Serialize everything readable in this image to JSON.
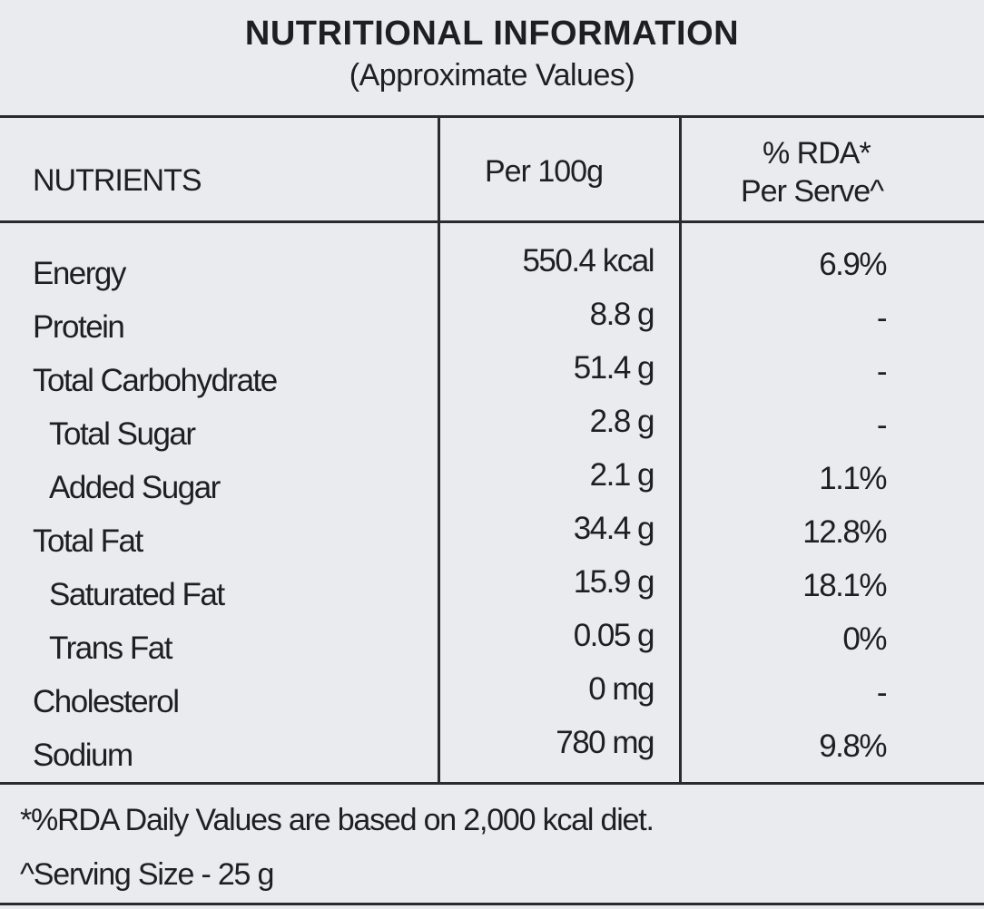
{
  "title": "NUTRITIONAL INFORMATION",
  "subtitle": "(Approximate Values)",
  "headers": {
    "nutrients": "NUTRIENTS",
    "per100g": "Per 100g",
    "rda_line1": "% RDA*",
    "rda_line2": "Per Serve^"
  },
  "rows": [
    {
      "name": "Energy",
      "per100g": "550.4 kcal",
      "rda": "6.9%"
    },
    {
      "name": "Protein",
      "per100g": "8.8  g",
      "rda": "-"
    },
    {
      "name": "Total Carbohydrate",
      "per100g": "51.4 g",
      "rda": "-"
    },
    {
      "name": "Total Sugar",
      "per100g": "2.8 g",
      "rda": "-"
    },
    {
      "name": "Added Sugar",
      "per100g": "2.1 g",
      "rda": "1.1%"
    },
    {
      "name": "Total Fat",
      "per100g": "34.4 g",
      "rda": "12.8%"
    },
    {
      "name": "Saturated Fat",
      "per100g": "15.9 g",
      "rda": "18.1%"
    },
    {
      "name": "Trans Fat",
      "per100g": "0.05 g",
      "rda": "0%"
    },
    {
      "name": "Cholesterol",
      "per100g": "0 mg",
      "rda": "-"
    },
    {
      "name": "Sodium",
      "per100g": "780 mg",
      "rda": "9.8%"
    }
  ],
  "footnotes": [
    "*%RDA Daily Values are based on 2,000 kcal diet.",
    "^Serving Size - 25 g"
  ]
}
